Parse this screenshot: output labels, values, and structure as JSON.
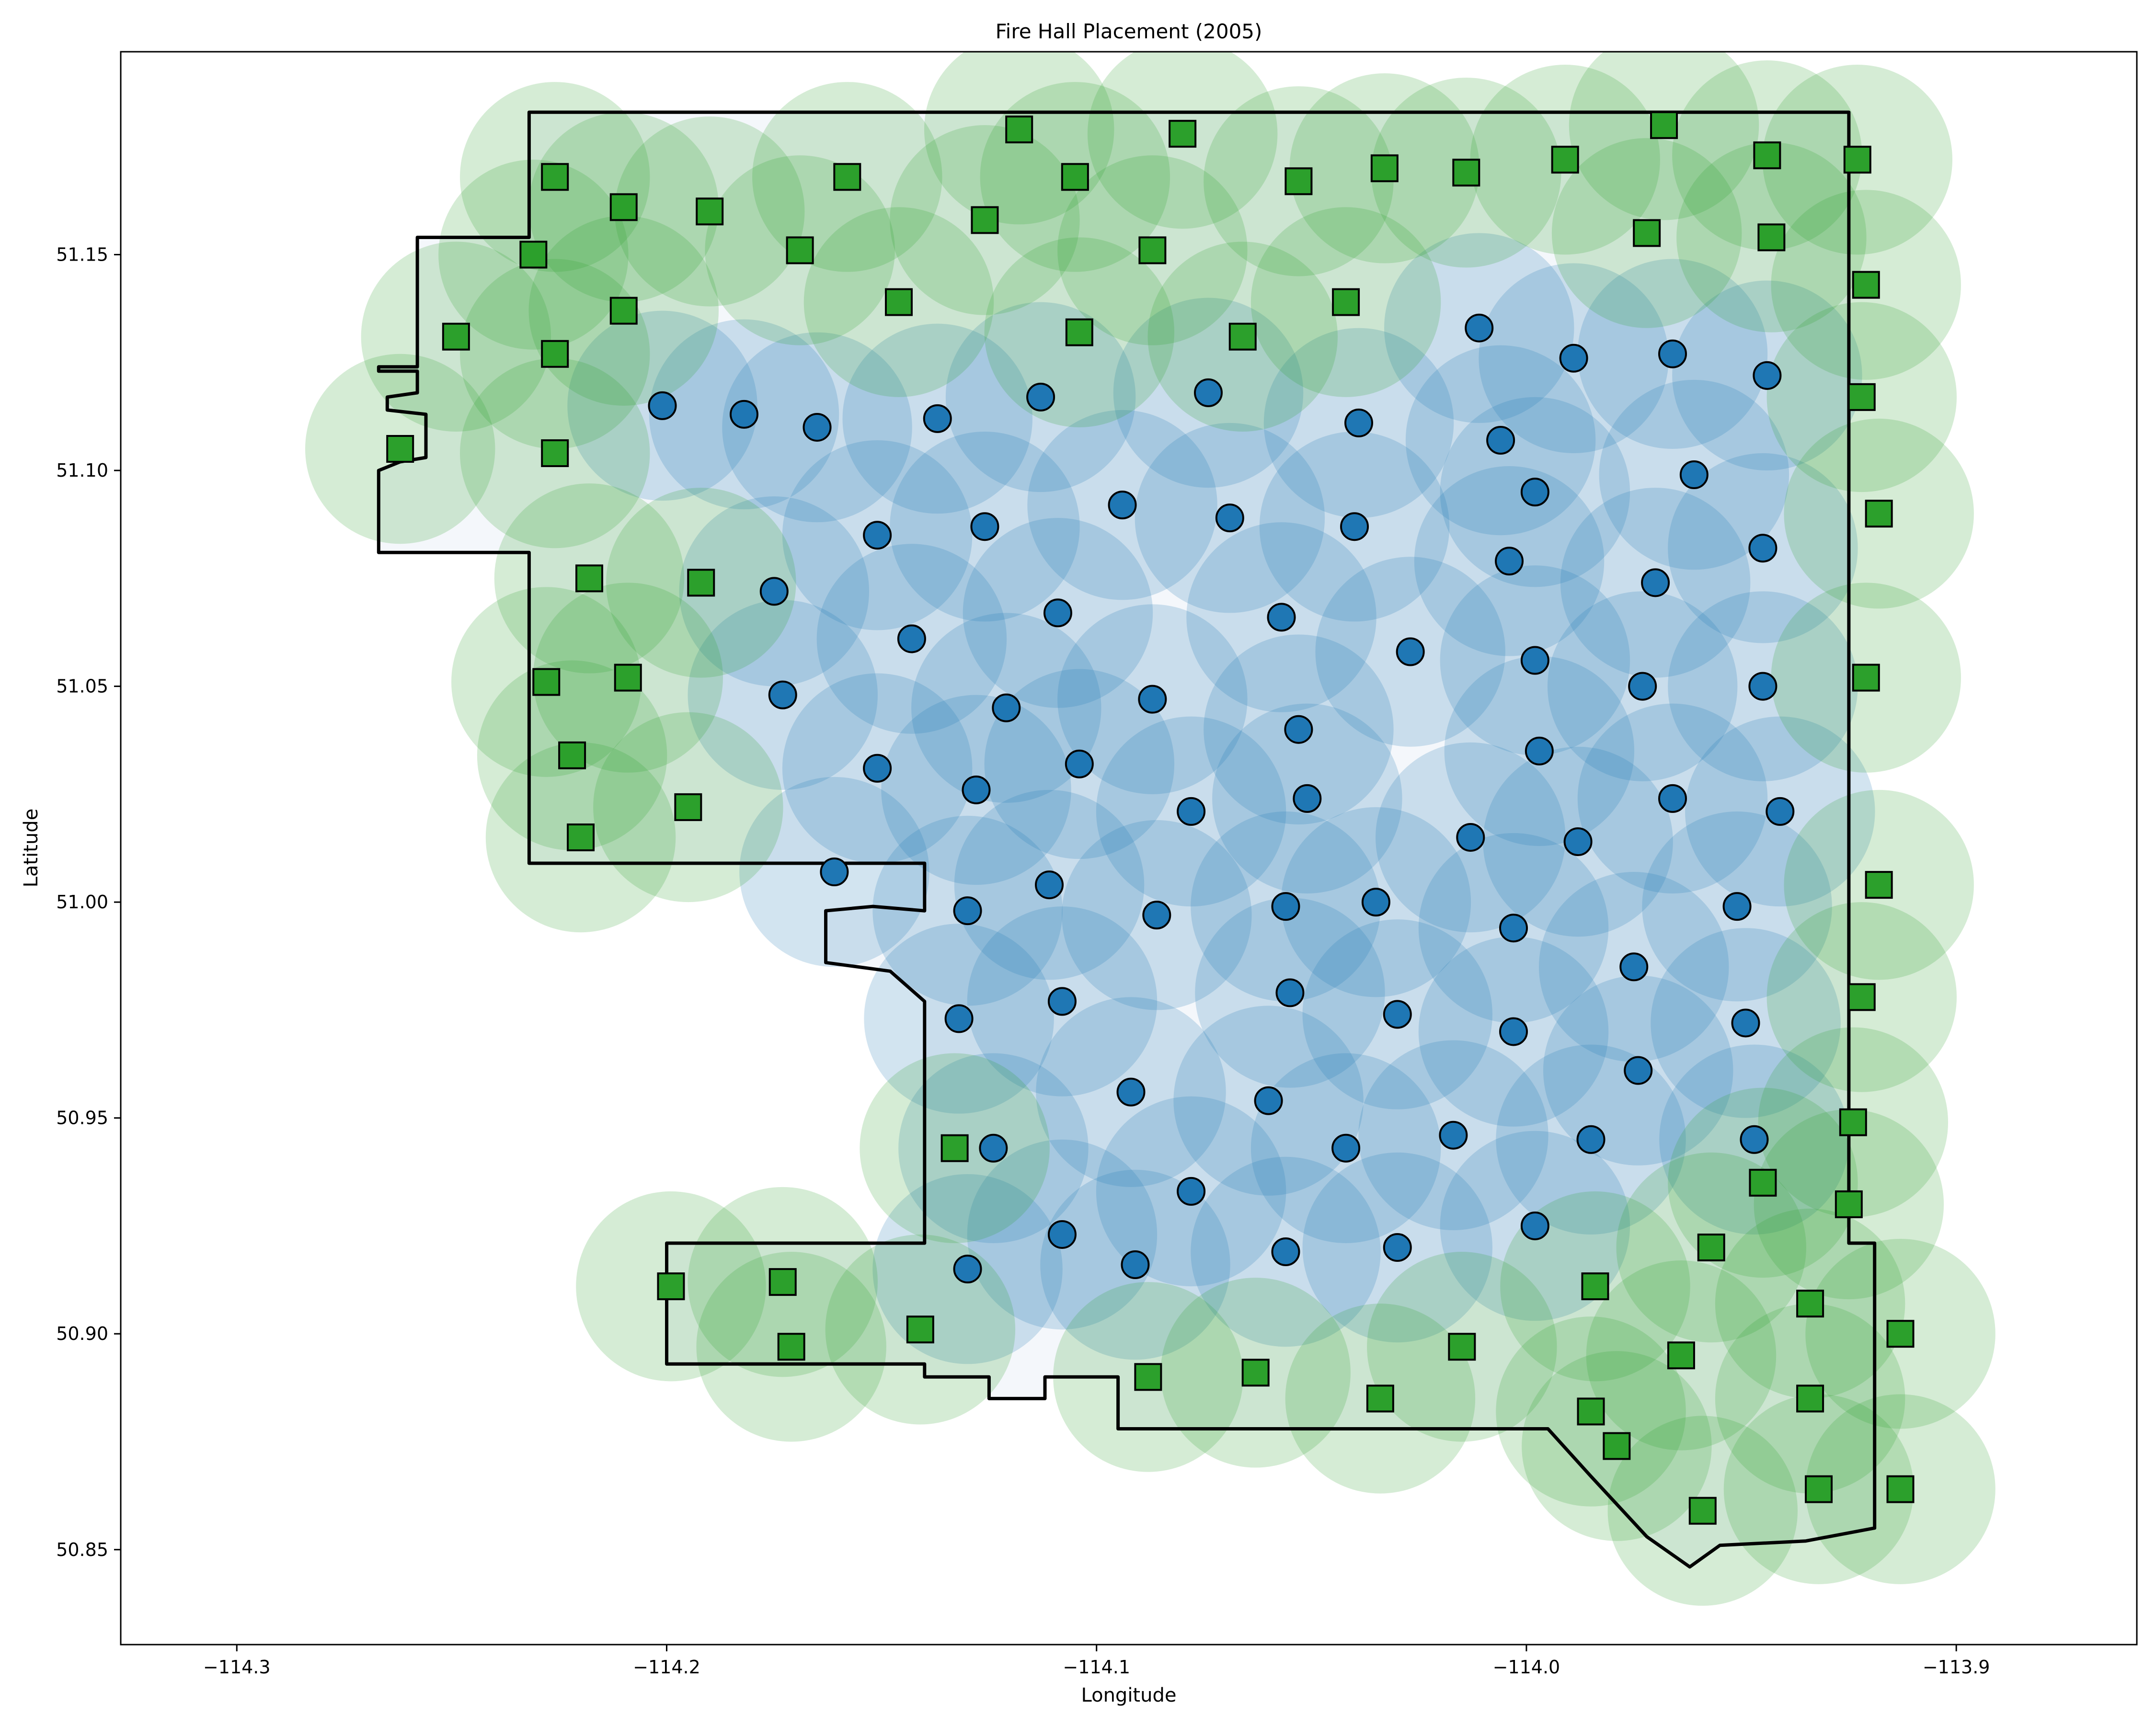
{
  "chart_data": {
    "type": "scatter",
    "title": "Fire Hall Placement (2005)",
    "xlabel": "Longitude",
    "ylabel": "Latitude",
    "xlim": [
      -114.327,
      -113.858
    ],
    "ylim": [
      50.828,
      51.197
    ],
    "x_ticks": [
      -114.3,
      -114.2,
      -114.1,
      -114.0,
      -113.9
    ],
    "x_tick_labels": [
      "−114.3",
      "−114.2",
      "−114.1",
      "−114.0",
      "−113.9"
    ],
    "y_ticks": [
      50.85,
      50.9,
      50.95,
      51.0,
      51.05,
      51.1,
      51.15
    ],
    "y_tick_labels": [
      "50.85",
      "50.90",
      "50.95",
      "51.00",
      "51.05",
      "51.10",
      "51.15"
    ],
    "grid": false,
    "legend": null,
    "colors": {
      "interior_fill": "#1f77b4",
      "interior_marker": "#1f77b4",
      "edge_fill": "#2ca02c",
      "edge_marker": "#2ca02c",
      "boundary": "#000000"
    },
    "coverage_radius_deg": 0.022,
    "boundary": [
      [
        -114.232,
        51.183
      ],
      [
        -113.925,
        51.183
      ],
      [
        -113.925,
        51.155
      ],
      [
        -113.925,
        50.921
      ],
      [
        -113.919,
        50.921
      ],
      [
        -113.919,
        50.855
      ],
      [
        -113.935,
        50.852
      ],
      [
        -113.955,
        50.851
      ],
      [
        -113.962,
        50.846
      ],
      [
        -113.972,
        50.853
      ],
      [
        -113.985,
        50.867
      ],
      [
        -113.995,
        50.878
      ],
      [
        -114.02,
        50.878
      ],
      [
        -114.095,
        50.878
      ],
      [
        -114.095,
        50.89
      ],
      [
        -114.112,
        50.89
      ],
      [
        -114.112,
        50.885
      ],
      [
        -114.125,
        50.885
      ],
      [
        -114.125,
        50.89
      ],
      [
        -114.14,
        50.89
      ],
      [
        -114.14,
        50.893
      ],
      [
        -114.2,
        50.893
      ],
      [
        -114.2,
        50.921
      ],
      [
        -114.14,
        50.921
      ],
      [
        -114.14,
        50.977
      ],
      [
        -114.148,
        50.984
      ],
      [
        -114.163,
        50.986
      ],
      [
        -114.163,
        50.998
      ],
      [
        -114.152,
        50.999
      ],
      [
        -114.14,
        50.998
      ],
      [
        -114.14,
        51.009
      ],
      [
        -114.232,
        51.009
      ],
      [
        -114.232,
        51.081
      ],
      [
        -114.267,
        51.081
      ],
      [
        -114.267,
        51.1
      ],
      [
        -114.262,
        51.102
      ],
      [
        -114.256,
        51.103
      ],
      [
        -114.256,
        51.113
      ],
      [
        -114.265,
        51.114
      ],
      [
        -114.265,
        51.117
      ],
      [
        -114.258,
        51.118
      ],
      [
        -114.258,
        51.123
      ],
      [
        -114.267,
        51.123
      ],
      [
        -114.267,
        51.124
      ],
      [
        -114.258,
        51.124
      ],
      [
        -114.258,
        51.154
      ],
      [
        -114.232,
        51.154
      ],
      [
        -114.232,
        51.183
      ]
    ],
    "interior_stations": [
      [
        -114.201,
        51.115
      ],
      [
        -114.182,
        51.113
      ],
      [
        -114.165,
        51.11
      ],
      [
        -114.137,
        51.112
      ],
      [
        -114.113,
        51.117
      ],
      [
        -114.074,
        51.118
      ],
      [
        -114.011,
        51.133
      ],
      [
        -113.989,
        51.126
      ],
      [
        -113.966,
        51.127
      ],
      [
        -113.944,
        51.122
      ],
      [
        -114.151,
        51.085
      ],
      [
        -114.126,
        51.087
      ],
      [
        -114.094,
        51.092
      ],
      [
        -114.069,
        51.089
      ],
      [
        -114.039,
        51.111
      ],
      [
        -114.006,
        51.107
      ],
      [
        -113.998,
        51.095
      ],
      [
        -113.961,
        51.099
      ],
      [
        -114.175,
        51.072
      ],
      [
        -114.143,
        51.061
      ],
      [
        -114.109,
        51.067
      ],
      [
        -114.057,
        51.066
      ],
      [
        -114.04,
        51.087
      ],
      [
        -114.004,
        51.079
      ],
      [
        -113.97,
        51.074
      ],
      [
        -113.945,
        51.082
      ],
      [
        -114.173,
        51.048
      ],
      [
        -114.121,
        51.045
      ],
      [
        -114.087,
        51.047
      ],
      [
        -114.053,
        51.04
      ],
      [
        -114.027,
        51.058
      ],
      [
        -113.998,
        51.056
      ],
      [
        -113.973,
        51.05
      ],
      [
        -113.945,
        51.05
      ],
      [
        -114.151,
        51.031
      ],
      [
        -114.128,
        51.026
      ],
      [
        -114.104,
        51.032
      ],
      [
        -114.078,
        51.021
      ],
      [
        -114.051,
        51.024
      ],
      [
        -114.013,
        51.015
      ],
      [
        -113.997,
        51.035
      ],
      [
        -113.988,
        51.014
      ],
      [
        -113.966,
        51.024
      ],
      [
        -113.941,
        51.021
      ],
      [
        -114.161,
        51.007
      ],
      [
        -114.13,
        50.998
      ],
      [
        -114.111,
        51.004
      ],
      [
        -114.086,
        50.997
      ],
      [
        -114.056,
        50.999
      ],
      [
        -114.035,
        51.0
      ],
      [
        -114.003,
        50.994
      ],
      [
        -113.951,
        50.999
      ],
      [
        -114.132,
        50.973
      ],
      [
        -114.108,
        50.977
      ],
      [
        -114.055,
        50.979
      ],
      [
        -114.03,
        50.974
      ],
      [
        -114.003,
        50.97
      ],
      [
        -113.975,
        50.985
      ],
      [
        -113.949,
        50.972
      ],
      [
        -114.092,
        50.956
      ],
      [
        -114.06,
        50.954
      ],
      [
        -114.042,
        50.943
      ],
      [
        -114.017,
        50.946
      ],
      [
        -113.985,
        50.945
      ],
      [
        -113.974,
        50.961
      ],
      [
        -113.947,
        50.945
      ],
      [
        -114.124,
        50.943
      ],
      [
        -114.078,
        50.933
      ],
      [
        -114.13,
        50.915
      ],
      [
        -114.108,
        50.923
      ],
      [
        -114.091,
        50.916
      ],
      [
        -114.056,
        50.919
      ],
      [
        -114.03,
        50.92
      ],
      [
        -113.998,
        50.925
      ]
    ],
    "edge_stations": [
      [
        -114.226,
        51.168
      ],
      [
        -114.21,
        51.161
      ],
      [
        -114.19,
        51.16
      ],
      [
        -114.158,
        51.168
      ],
      [
        -114.118,
        51.179
      ],
      [
        -114.08,
        51.178
      ],
      [
        -114.105,
        51.168
      ],
      [
        -114.053,
        51.167
      ],
      [
        -114.033,
        51.17
      ],
      [
        -114.014,
        51.169
      ],
      [
        -113.991,
        51.172
      ],
      [
        -113.968,
        51.18
      ],
      [
        -113.944,
        51.173
      ],
      [
        -113.923,
        51.172
      ],
      [
        -114.231,
        51.15
      ],
      [
        -114.169,
        51.151
      ],
      [
        -114.126,
        51.158
      ],
      [
        -114.087,
        51.151
      ],
      [
        -113.972,
        51.155
      ],
      [
        -113.943,
        51.154
      ],
      [
        -114.249,
        51.131
      ],
      [
        -114.226,
        51.127
      ],
      [
        -114.21,
        51.137
      ],
      [
        -114.146,
        51.139
      ],
      [
        -114.104,
        51.132
      ],
      [
        -114.066,
        51.131
      ],
      [
        -114.042,
        51.139
      ],
      [
        -113.921,
        51.143
      ],
      [
        -114.262,
        51.105
      ],
      [
        -114.226,
        51.104
      ],
      [
        -113.922,
        51.117
      ],
      [
        -113.918,
        51.09
      ],
      [
        -114.218,
        51.075
      ],
      [
        -114.192,
        51.074
      ],
      [
        -114.228,
        51.051
      ],
      [
        -114.209,
        51.052
      ],
      [
        -113.921,
        51.052
      ],
      [
        -114.222,
        51.034
      ],
      [
        -114.22,
        51.015
      ],
      [
        -114.195,
        51.022
      ],
      [
        -113.918,
        51.004
      ],
      [
        -113.922,
        50.978
      ],
      [
        -113.924,
        50.949
      ],
      [
        -114.133,
        50.943
      ],
      [
        -113.945,
        50.935
      ],
      [
        -113.925,
        50.93
      ],
      [
        -114.199,
        50.911
      ],
      [
        -114.173,
        50.912
      ],
      [
        -114.171,
        50.897
      ],
      [
        -114.141,
        50.901
      ],
      [
        -114.088,
        50.89
      ],
      [
        -114.063,
        50.891
      ],
      [
        -114.034,
        50.885
      ],
      [
        -114.015,
        50.897
      ],
      [
        -113.984,
        50.911
      ],
      [
        -113.957,
        50.92
      ],
      [
        -113.934,
        50.907
      ],
      [
        -113.913,
        50.9
      ],
      [
        -113.964,
        50.895
      ],
      [
        -113.985,
        50.882
      ],
      [
        -113.979,
        50.874
      ],
      [
        -113.934,
        50.885
      ],
      [
        -113.959,
        50.859
      ],
      [
        -113.932,
        50.864
      ],
      [
        -113.913,
        50.864
      ]
    ]
  }
}
